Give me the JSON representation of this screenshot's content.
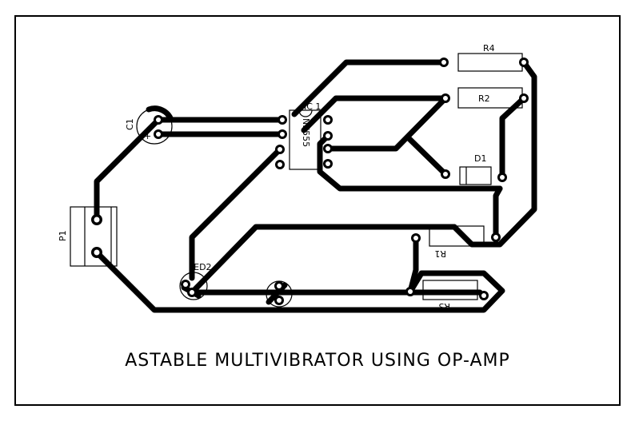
{
  "title": "ASTABLE MULTIVIBRATOR USING OP-AMP",
  "labels": {
    "r4": "R4",
    "r2": "R2",
    "d1": "D1",
    "r1": "R1",
    "r3": "R3",
    "c1": "C1",
    "p1": "P1",
    "led2": "LED2",
    "ic1": "IC 1",
    "ic1_part": "NE555"
  },
  "colors": {
    "copper": "#000000",
    "background": "#ffffff"
  }
}
